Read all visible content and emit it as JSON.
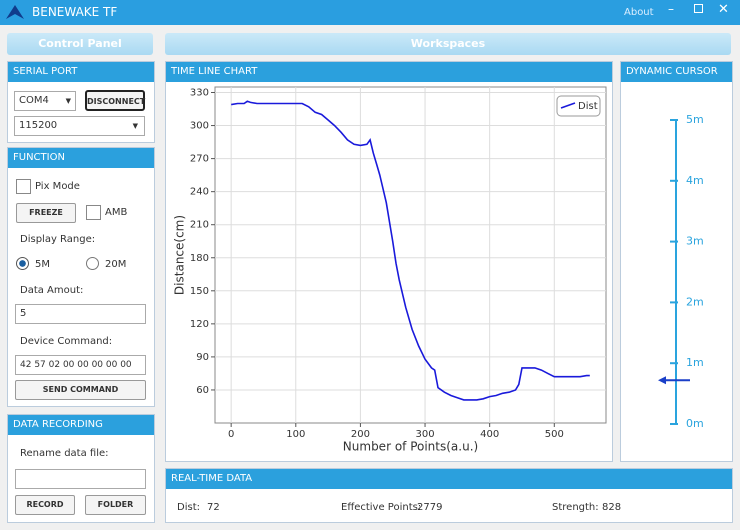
{
  "window": {
    "title": "BENEWAKE TF",
    "menu": [
      "About"
    ]
  },
  "control_panel": {
    "title": "Control Panel",
    "serial_port": {
      "heading": "SERIAL PORT",
      "port": "COM4",
      "baud": "115200",
      "button": "DISCONNECT"
    },
    "function": {
      "heading": "FUNCTION",
      "pix_mode": "Pix Mode",
      "freeze": "FREEZE",
      "amb": "AMB",
      "display_range": "Display Range:",
      "range_options": [
        "5M",
        "20M"
      ],
      "data_amount_label": "Data Amout:",
      "data_amount": "5",
      "device_command_label": "Device Command:",
      "device_command": "42 57 02 00 00 00 00 00",
      "send": "SEND COMMAND"
    },
    "data_recording": {
      "heading": "DATA RECORDING",
      "rename_label": "Rename data file:",
      "record": "RECORD",
      "folder": "FOLDER"
    }
  },
  "workspaces": {
    "title": "Workspaces",
    "chart_panel_title": "TIME LINE CHART",
    "dynamic_cursor": {
      "title": "DYNAMIC CURSOR",
      "ylim": [
        0,
        5
      ],
      "ticks": [
        {
          "value": 0,
          "label": "0m"
        },
        {
          "value": 1,
          "label": "1m"
        },
        {
          "value": 2,
          "label": "2m"
        },
        {
          "value": 3,
          "label": "3m"
        },
        {
          "value": 4,
          "label": "4m"
        },
        {
          "value": 5,
          "label": "5m"
        }
      ],
      "value": 0.72
    },
    "realtime": {
      "title": "REAL-TIME DATA",
      "dist_label": "Dist:",
      "dist": 72,
      "points_label": "Effective Points:",
      "points": 2779,
      "strength_label": "Strength:",
      "strength": 828
    }
  },
  "chart_data": {
    "type": "line",
    "x_label": "Number of Points(a.u.)",
    "y_label": "Distance(cm)",
    "x": [
      0,
      10,
      20,
      25,
      30,
      40,
      50,
      60,
      70,
      80,
      90,
      100,
      110,
      120,
      130,
      140,
      150,
      160,
      170,
      180,
      190,
      200,
      210,
      215,
      220,
      225,
      230,
      240,
      250,
      255,
      260,
      270,
      280,
      290,
      300,
      310,
      315,
      320,
      330,
      340,
      350,
      360,
      370,
      380,
      390,
      400,
      410,
      420,
      430,
      440,
      445,
      450,
      460,
      470,
      480,
      490,
      500,
      510,
      520,
      530,
      540,
      550,
      555
    ],
    "series": [
      {
        "name": "Dist",
        "color": "#1a1adb",
        "values": [
          319,
          320,
          320,
          322,
          321,
          320,
          320,
          320,
          320,
          320,
          320,
          320,
          320,
          317,
          312,
          310,
          305,
          300,
          294,
          287,
          283,
          282,
          283,
          287,
          275,
          265,
          255,
          230,
          195,
          175,
          160,
          135,
          115,
          100,
          88,
          80,
          78,
          62,
          58,
          55,
          53,
          51,
          51,
          51,
          52,
          54,
          55,
          57,
          58,
          60,
          65,
          80,
          80,
          80,
          78,
          75,
          72,
          72,
          72,
          72,
          72,
          73,
          73
        ]
      }
    ],
    "xlim": [
      -25,
      580
    ],
    "ylim": [
      30,
      335
    ],
    "xticks": [
      0,
      100,
      200,
      300,
      400,
      500
    ],
    "yticks": [
      60,
      90,
      120,
      150,
      180,
      210,
      240,
      270,
      300,
      330
    ],
    "grid": true,
    "legend": "top-right"
  }
}
